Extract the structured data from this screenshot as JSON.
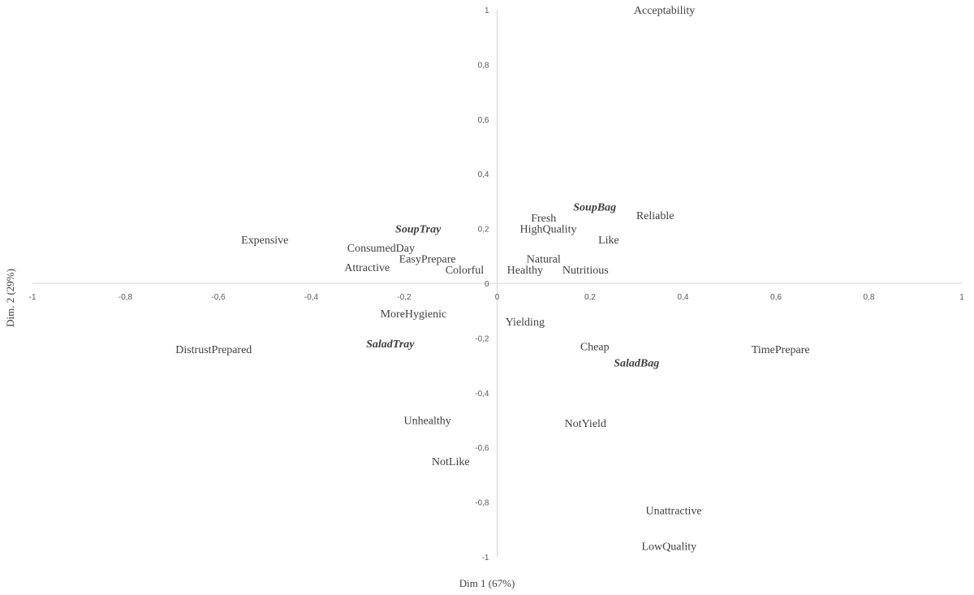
{
  "chart_data": {
    "type": "scatter",
    "title": "",
    "xlabel": "Dim 1 (67%)",
    "ylabel": "Dim. 2 (29%)",
    "xlim": [
      -1,
      1
    ],
    "ylim": [
      -1,
      1
    ],
    "grid": false,
    "x_ticks": [
      "-1",
      "-0,8",
      "-0,6",
      "-0,4",
      "-0,2",
      "0",
      "0,2",
      "0,4",
      "0,6",
      "0,8",
      "1"
    ],
    "y_ticks": [
      "1",
      "0,8",
      "0,6",
      "0,4",
      "0,2",
      "0",
      "-0,2",
      "-0,4",
      "-0,6",
      "-0,8",
      "-1"
    ],
    "points": [
      {
        "label": "Acceptability",
        "x": 0.36,
        "y": 1.0,
        "product": false
      },
      {
        "label": "Fresh",
        "x": 0.1,
        "y": 0.24,
        "product": false
      },
      {
        "label": "SoupBag",
        "x": 0.21,
        "y": 0.28,
        "product": true
      },
      {
        "label": "Reliable",
        "x": 0.34,
        "y": 0.25,
        "product": false
      },
      {
        "label": "HighQuality",
        "x": 0.11,
        "y": 0.2,
        "product": false
      },
      {
        "label": "Like",
        "x": 0.24,
        "y": 0.16,
        "product": false
      },
      {
        "label": "SoupTray",
        "x": -0.17,
        "y": 0.2,
        "product": true
      },
      {
        "label": "Expensive",
        "x": -0.5,
        "y": 0.16,
        "product": false
      },
      {
        "label": "ConsumedDay",
        "x": -0.25,
        "y": 0.13,
        "product": false
      },
      {
        "label": "EasyPrepare",
        "x": -0.15,
        "y": 0.09,
        "product": false
      },
      {
        "label": "Natural",
        "x": 0.1,
        "y": 0.09,
        "product": false
      },
      {
        "label": "Attractive",
        "x": -0.28,
        "y": 0.06,
        "product": false
      },
      {
        "label": "Colorful",
        "x": -0.07,
        "y": 0.05,
        "product": false
      },
      {
        "label": "Healthy",
        "x": 0.06,
        "y": 0.05,
        "product": false
      },
      {
        "label": "Nutritious",
        "x": 0.19,
        "y": 0.05,
        "product": false
      },
      {
        "label": "MoreHygienic",
        "x": -0.18,
        "y": -0.11,
        "product": false
      },
      {
        "label": "Yielding",
        "x": 0.06,
        "y": -0.14,
        "product": false
      },
      {
        "label": "DistrustPrepared",
        "x": -0.61,
        "y": -0.24,
        "product": false
      },
      {
        "label": "SaladTray",
        "x": -0.23,
        "y": -0.22,
        "product": true
      },
      {
        "label": "Cheap",
        "x": 0.21,
        "y": -0.23,
        "product": false
      },
      {
        "label": "TimePrepare",
        "x": 0.61,
        "y": -0.24,
        "product": false
      },
      {
        "label": "SaladBag",
        "x": 0.3,
        "y": -0.29,
        "product": true
      },
      {
        "label": "Unhealthy",
        "x": -0.15,
        "y": -0.5,
        "product": false
      },
      {
        "label": "NotYield",
        "x": 0.19,
        "y": -0.51,
        "product": false
      },
      {
        "label": "NotLike",
        "x": -0.1,
        "y": -0.65,
        "product": false
      },
      {
        "label": "Unattractive",
        "x": 0.38,
        "y": -0.83,
        "product": false
      },
      {
        "label": "LowQuality",
        "x": 0.37,
        "y": -0.96,
        "product": false
      }
    ]
  }
}
